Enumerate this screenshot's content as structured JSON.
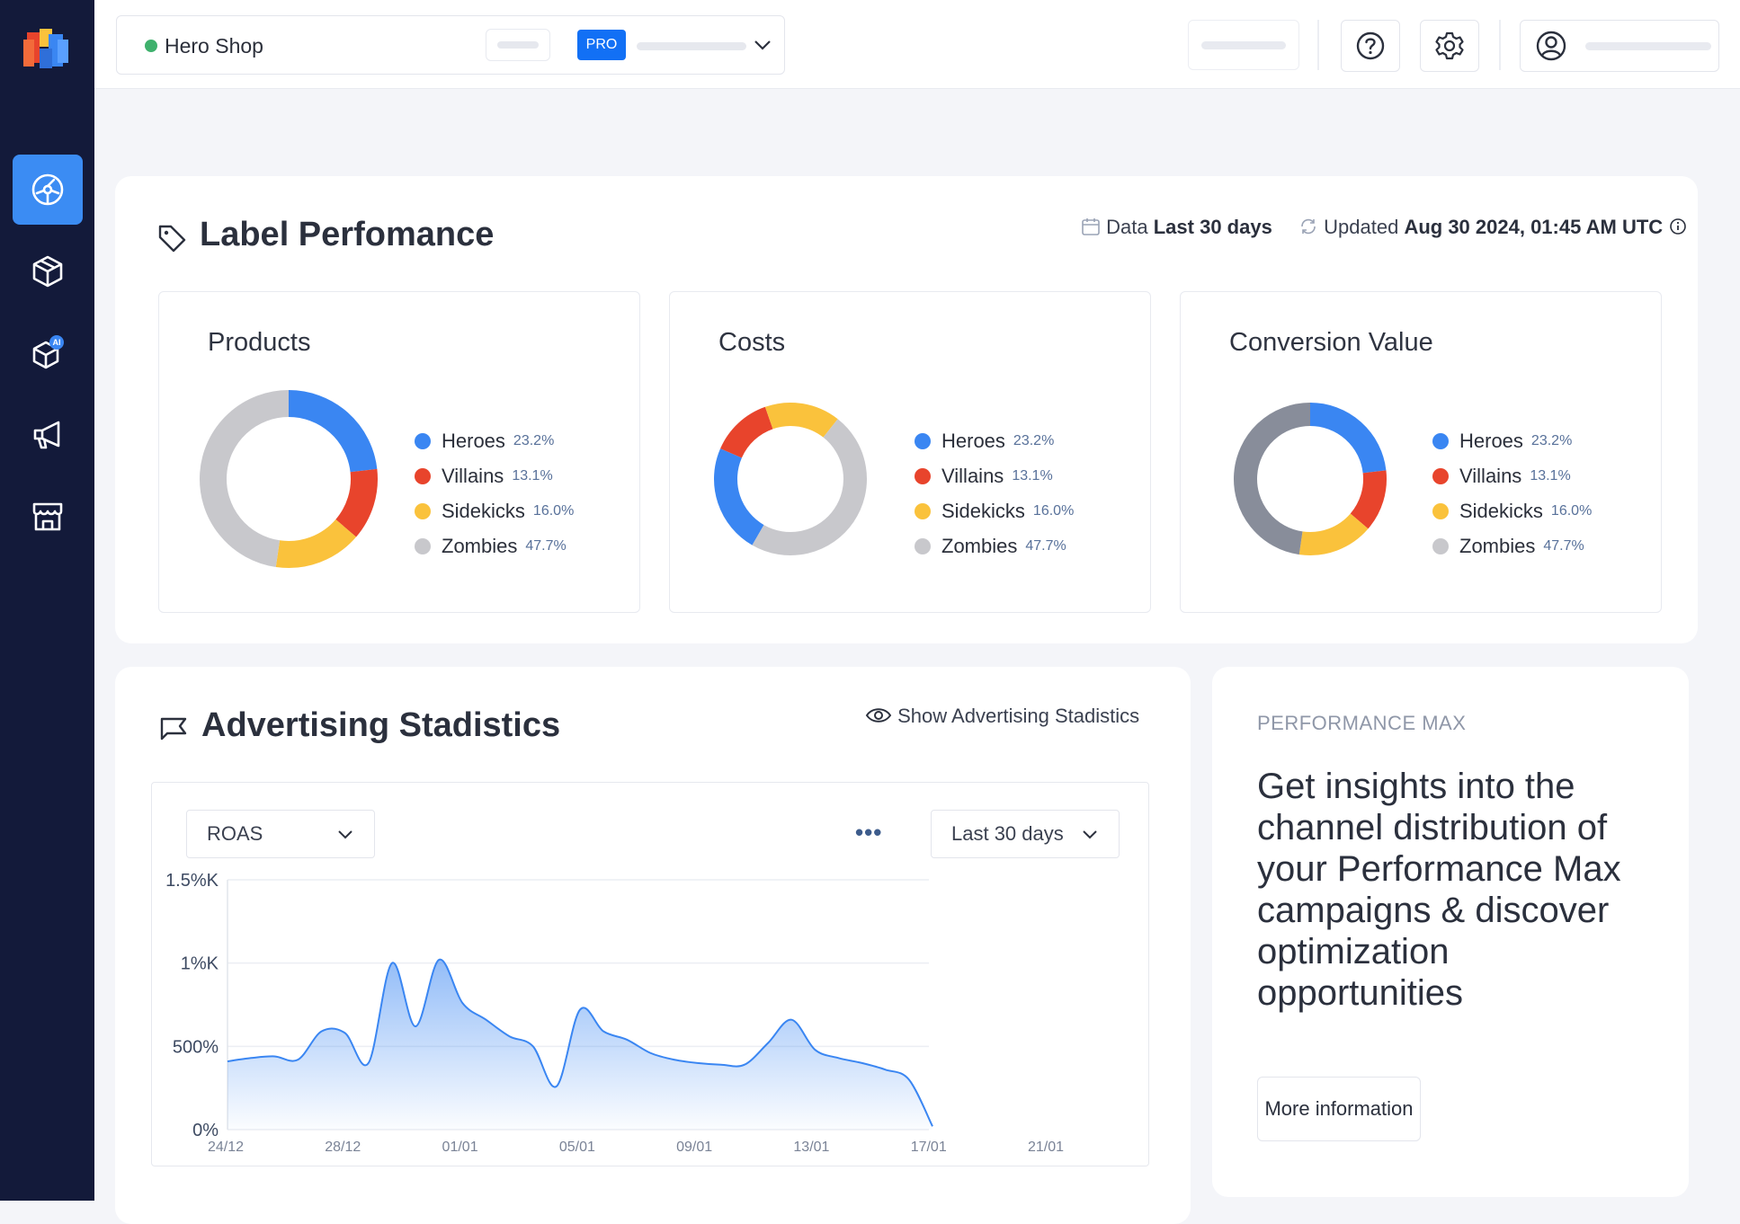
{
  "topbar": {
    "shop_name": "Hero Shop",
    "badge": "PRO"
  },
  "label_performance": {
    "title": "Label Perfomance",
    "data_prefix": "Data",
    "data_value": "Last 30 days",
    "updated_prefix": "Updated",
    "updated_value": "Aug 30 2024, 01:45 AM UTC",
    "charts": [
      {
        "title": "Products"
      },
      {
        "title": "Costs"
      },
      {
        "title": "Conversion Value"
      }
    ],
    "legend": [
      {
        "name": "Heroes",
        "pct": "23.2%",
        "color": "#3a86f2"
      },
      {
        "name": "Villains",
        "pct": "13.1%",
        "color": "#e8442c"
      },
      {
        "name": "Sidekicks",
        "pct": "16.0%",
        "color": "#fac23c"
      },
      {
        "name": "Zombies",
        "pct": "47.7%",
        "color": "#c8c8cc"
      }
    ]
  },
  "advertising": {
    "title": "Advertising Stadistics",
    "show_link": "Show Advertising Stadistics",
    "metric_select": "ROAS",
    "range_select": "Last 30 days",
    "more_dots": "•••"
  },
  "chart_data": {
    "type": "area",
    "title": "",
    "xlabel": "",
    "ylabel": "",
    "y_ticks": [
      "0%",
      "500%",
      "1%K",
      "1.5%K"
    ],
    "x_ticks": [
      "24/12",
      "28/12",
      "01/01",
      "05/01",
      "09/01",
      "13/01",
      "17/01",
      "21/01"
    ],
    "ylim": [
      0,
      1500
    ],
    "x": [
      0,
      1,
      2,
      3,
      4,
      5,
      6,
      7,
      8,
      9,
      10,
      11,
      12,
      13,
      14,
      15,
      16,
      17,
      18,
      19,
      20,
      21,
      22,
      23,
      24,
      25,
      26,
      27,
      28,
      29,
      30
    ],
    "values": [
      410,
      430,
      440,
      420,
      590,
      580,
      400,
      1000,
      620,
      1020,
      760,
      660,
      560,
      500,
      260,
      720,
      590,
      540,
      460,
      420,
      400,
      390,
      390,
      520,
      660,
      480,
      430,
      400,
      360,
      300,
      20
    ],
    "grid": true,
    "color": "#3a86f2"
  },
  "performance_max": {
    "label": "PERFORMANCE MAX",
    "text": "Get insights into the channel distribution of your Performance Max campaigns & discover optimization opportunities",
    "button": "More information"
  }
}
